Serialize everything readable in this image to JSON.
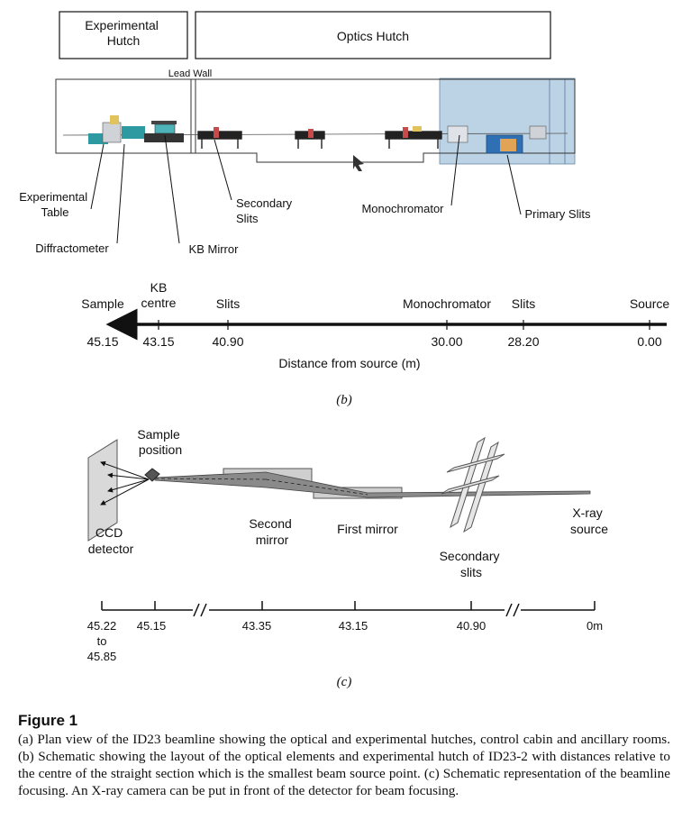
{
  "panel_a": {
    "experimental_hutch": "Experimental\nHutch",
    "optics_hutch": "Optics Hutch",
    "lead_wall": "Lead Wall",
    "labels": {
      "experimental_table": "Experimental\nTable",
      "diffractometer": "Diffractometer",
      "kb_mirror": "KB Mirror",
      "secondary_slits": "Secondary\nSlits",
      "monochromator": "Monochromator",
      "primary_slits": "Primary Slits"
    }
  },
  "panel_b": {
    "marker": "(b)",
    "axis_title": "Distance from source (m)",
    "stations": [
      {
        "name": "Sample",
        "distance": "45.15"
      },
      {
        "name": "KB\ncentre",
        "distance": "43.15"
      },
      {
        "name": "Slits",
        "distance": "40.90"
      },
      {
        "name": "Monochromator",
        "distance": "30.00"
      },
      {
        "name": "Slits",
        "distance": "28.20"
      },
      {
        "name": "Source",
        "distance": "0.00"
      }
    ]
  },
  "panel_c": {
    "marker": "(c)",
    "labels": {
      "sample_position": "Sample\nposition",
      "ccd_detector": "CCD\ndetector",
      "second_mirror": "Second\nmirror",
      "first_mirror": "First mirror",
      "secondary_slits": "Secondary\nslits",
      "xray_source": "X-ray\nsource"
    },
    "ticks": [
      "45.22\nto\n45.85",
      "45.15",
      "43.35",
      "43.15",
      "40.90",
      "0m"
    ]
  },
  "caption": {
    "title": "Figure 1",
    "text": "(a) Plan view of the ID23 beamline showing the optical and experimental hutches, control cabin and ancillary rooms. (b) Schematic showing the layout of the optical elements and experimental hutch of ID23-2 with distances relative to the centre of the straight section which is the smallest beam source point. (c) Schematic representation of the beamline focusing. An X-ray camera can be put in front of the detector for beam focusing."
  },
  "colors": {
    "ink": "#111111",
    "blue_room": "#bcd3e6",
    "beam_fill": "#8a8a8a",
    "mirror_fill": "#cfcfcf"
  }
}
